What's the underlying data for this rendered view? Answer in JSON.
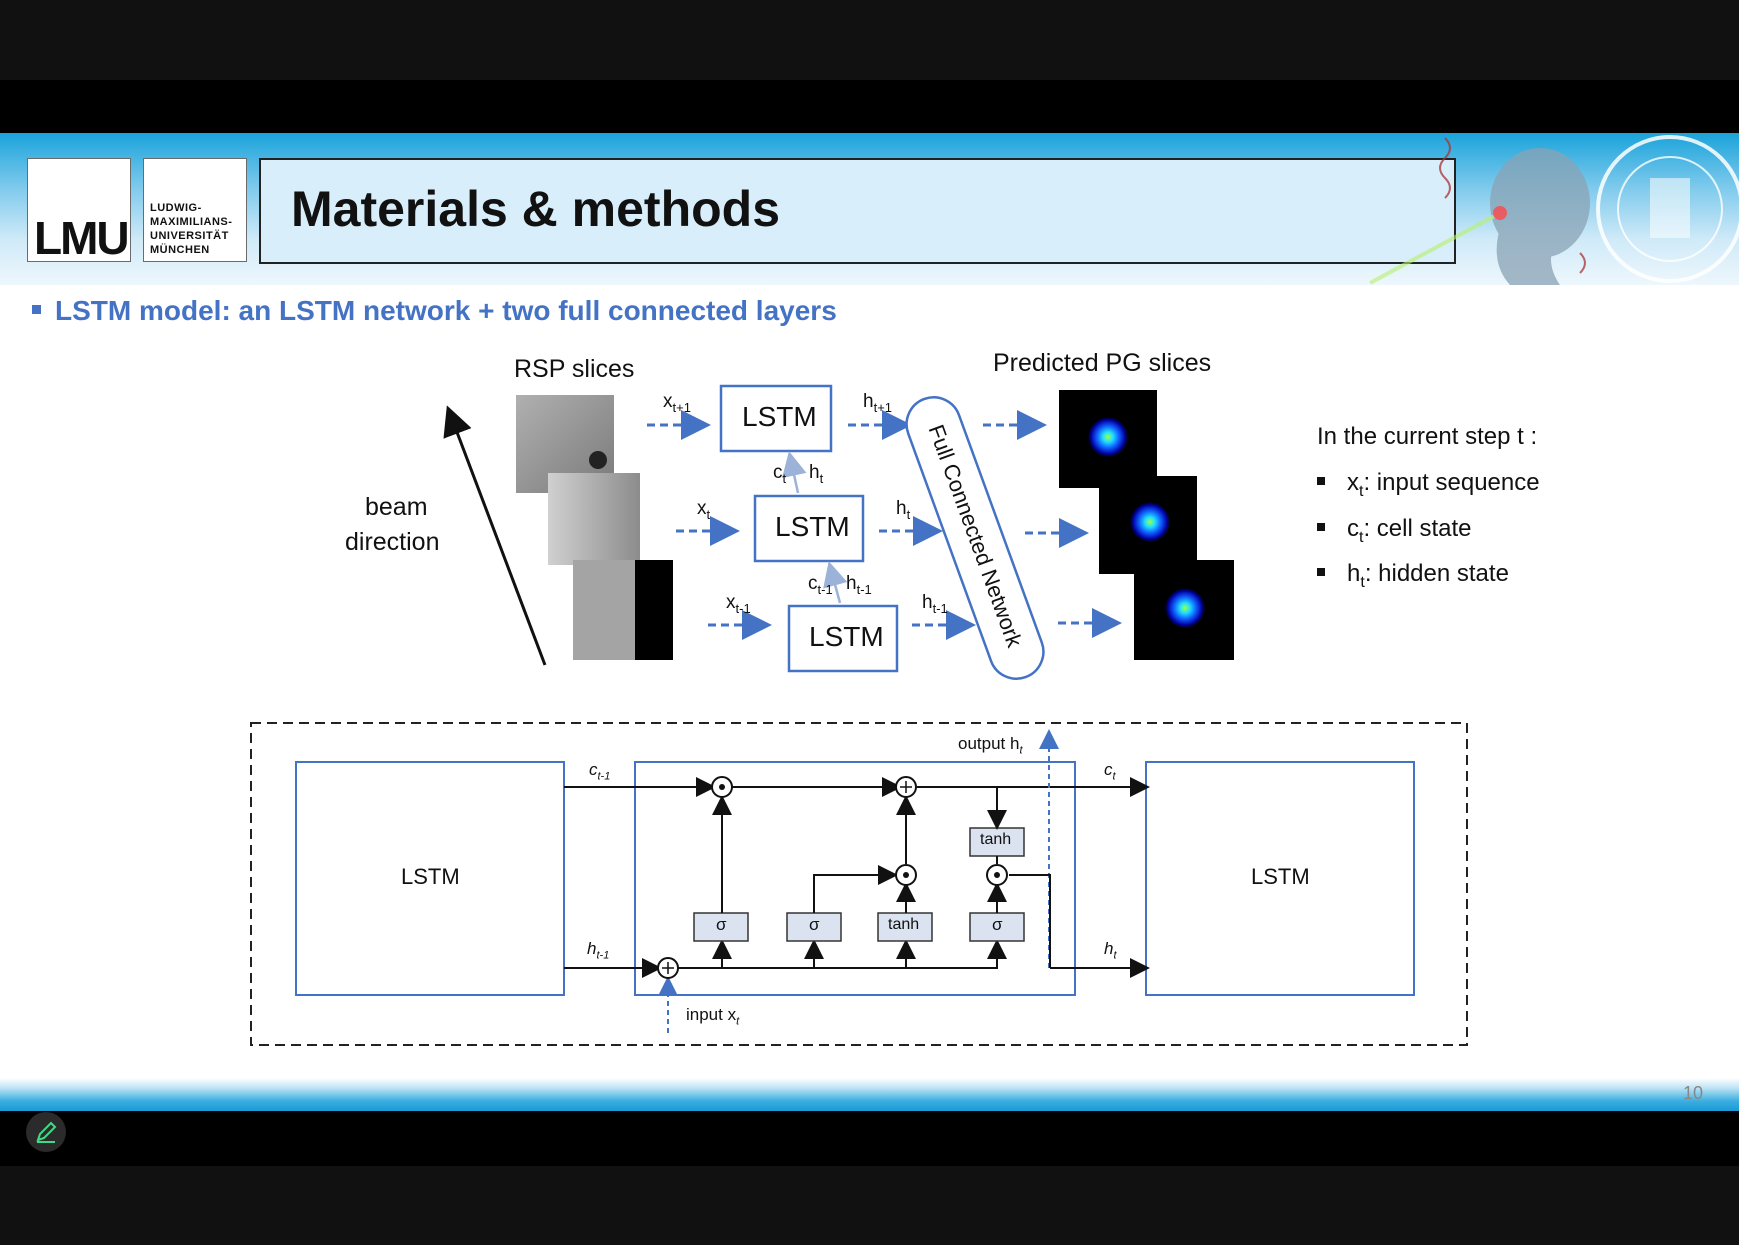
{
  "logo": {
    "mark": "LMU",
    "lines": [
      "LUDWIG-",
      "MAXIMILIANS-",
      "UNIVERSITÄT",
      "MÜNCHEN"
    ]
  },
  "slide_title": "Materials & methods",
  "bullet": "LSTM model: an LSTM network + two full connected layers",
  "top_diagram": {
    "rsp_label": "RSP slices",
    "pg_label": "Predicted PG slices",
    "beam_label_1": "beam",
    "beam_label_2": "direction",
    "lstm": "LSTM",
    "fcn": "Full Connected Network",
    "x_next": "x",
    "x_next_sub": "t+1",
    "x_cur": "x",
    "x_cur_sub": "t",
    "x_prev": "x",
    "x_prev_sub": "t-1",
    "h_next": "h",
    "h_next_sub": "t+1",
    "h_cur": "h",
    "h_cur_sub": "t",
    "h_prev": "h",
    "h_prev_sub": "t-1",
    "c_cur": "c",
    "c_cur_sub": "t",
    "c_prev": "c",
    "c_prev_sub": "t-1"
  },
  "notes": {
    "heading": "In the current step t :",
    "items": [
      {
        "sym": "x",
        "sub": "t",
        "text": ": input sequence"
      },
      {
        "sym": "c",
        "sub": "t",
        "text": ": cell state"
      },
      {
        "sym": "h",
        "sub": "t",
        "text": ": hidden state"
      }
    ]
  },
  "cell_diagram": {
    "left_box": "LSTM",
    "right_box": "LSTM",
    "c_prev": "c",
    "c_prev_sub": "t-1",
    "h_prev": "h",
    "h_prev_sub": "t-1",
    "c_out": "c",
    "c_out_sub": "t",
    "h_out": "h",
    "h_out_sub": "t",
    "output_label": "output h",
    "output_sub": "t",
    "input_label": "input x",
    "input_sub": "t",
    "sigma": "σ",
    "tanh": "tanh"
  },
  "page_number": "10",
  "icons": [
    "pen-icon"
  ],
  "colors": {
    "accent": "#4472c4",
    "header": "#1aa3da",
    "pen": "#3ddc84"
  }
}
